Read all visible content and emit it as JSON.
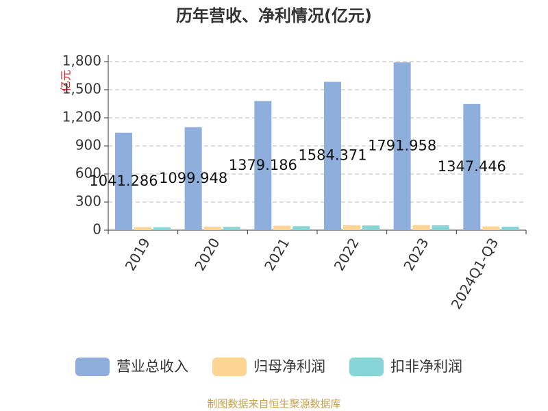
{
  "chart_data": {
    "type": "bar",
    "title": "历年营收、净利情况(亿元)",
    "y_label": "亿元",
    "source": "制图数据来自恒生聚源数据库",
    "categories": [
      "2019",
      "2020",
      "2021",
      "2022",
      "2023",
      "2024Q1-Q3"
    ],
    "series": [
      {
        "name": "营业总收入",
        "color": "#8eaedb",
        "values": [
          1041.286,
          1099.948,
          1379.186,
          1584.371,
          1791.958,
          1347.446
        ],
        "show_labels": true
      },
      {
        "name": "归母净利润",
        "color": "#fdd494",
        "values": [
          32,
          37,
          47,
          53,
          55,
          40
        ]
      },
      {
        "name": "扣非净利润",
        "color": "#88d5d8",
        "values": [
          30,
          35,
          42,
          50,
          52,
          38
        ]
      }
    ],
    "ylim": [
      0,
      1800
    ],
    "yticks": [
      0,
      300,
      600,
      900,
      {
        "value": 1200,
        "label": "1,200"
      },
      {
        "value": 1500,
        "label": "1,500"
      },
      {
        "value": 1800,
        "label": "1,800"
      }
    ],
    "grid": true
  }
}
